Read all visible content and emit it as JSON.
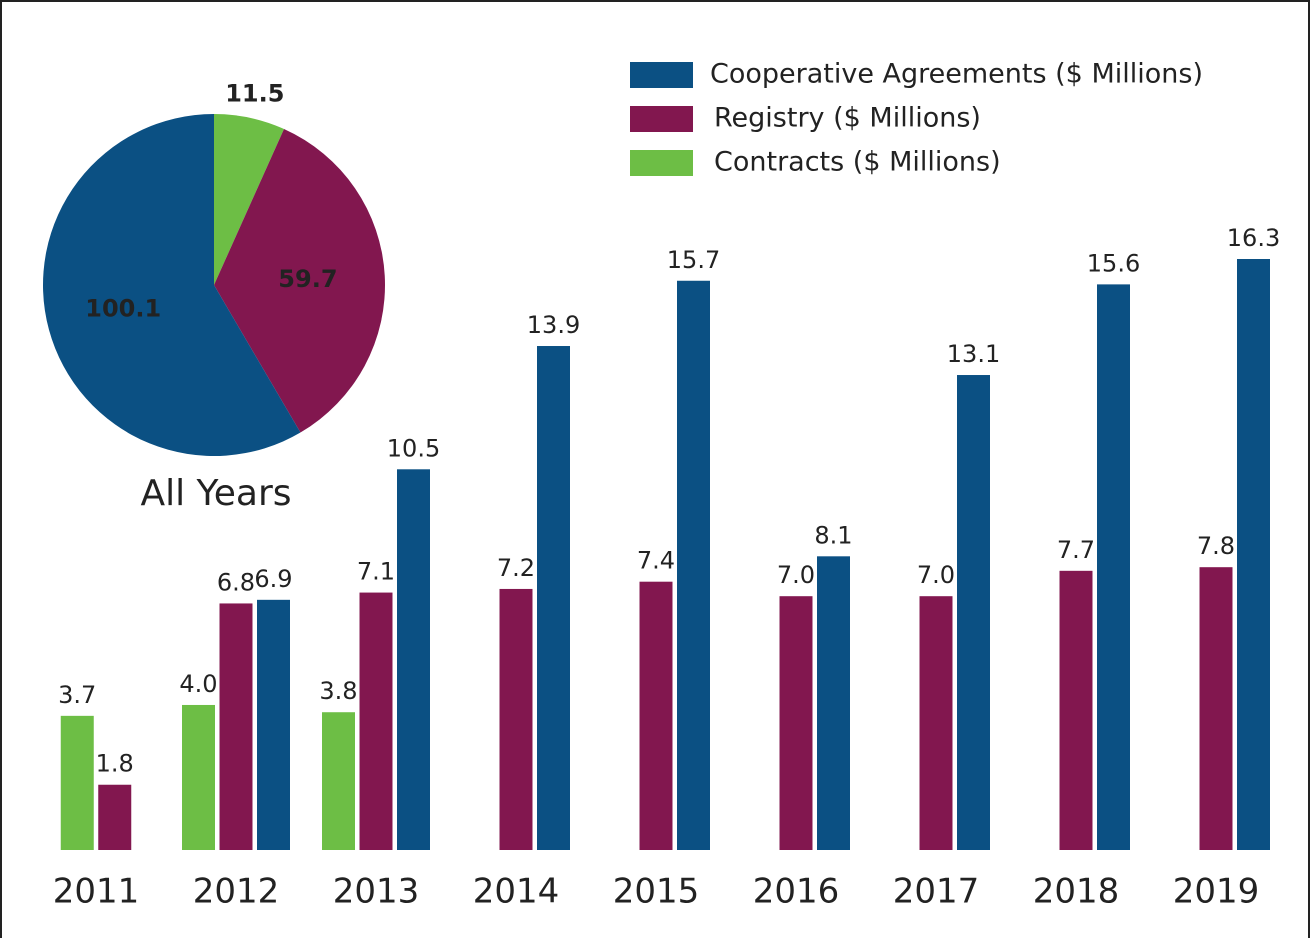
{
  "chart_data": [
    {
      "type": "bar",
      "categories": [
        "2011",
        "2012",
        "2013",
        "2014",
        "2015",
        "2016",
        "2017",
        "2018",
        "2019"
      ],
      "series": [
        {
          "name": "Cooperative Agreements ($ Millions)",
          "color": "#0b5083",
          "values": [
            null,
            6.9,
            10.5,
            13.9,
            15.7,
            8.1,
            13.1,
            15.6,
            16.3
          ],
          "value_labels": [
            null,
            "6.9",
            "10.5",
            "13.9",
            "15.7",
            "8.1",
            "13.1",
            "15.6",
            "16.3"
          ]
        },
        {
          "name": "Registry ($ Millions)",
          "color": "#82174f",
          "values": [
            1.8,
            6.8,
            7.1,
            7.2,
            7.4,
            7.0,
            7.0,
            7.7,
            7.8
          ],
          "value_labels": [
            "1.8",
            "6.8",
            "7.1",
            "7.2",
            "7.4",
            "7.0",
            "7.0",
            "7.7",
            "7.8"
          ]
        },
        {
          "name": "Contracts ($ Millions)",
          "color": "#6dbe45",
          "values": [
            3.7,
            4.0,
            3.8,
            null,
            null,
            null,
            null,
            null,
            null
          ],
          "value_labels": [
            "3.7",
            "4.0",
            "3.8",
            null,
            null,
            null,
            null,
            null,
            null
          ]
        }
      ]
    },
    {
      "type": "pie",
      "title": "All Years",
      "values": [
        11.5,
        59.7,
        100.1
      ],
      "colors": [
        "#6dbe45",
        "#82174f",
        "#0b5083"
      ]
    }
  ]
}
